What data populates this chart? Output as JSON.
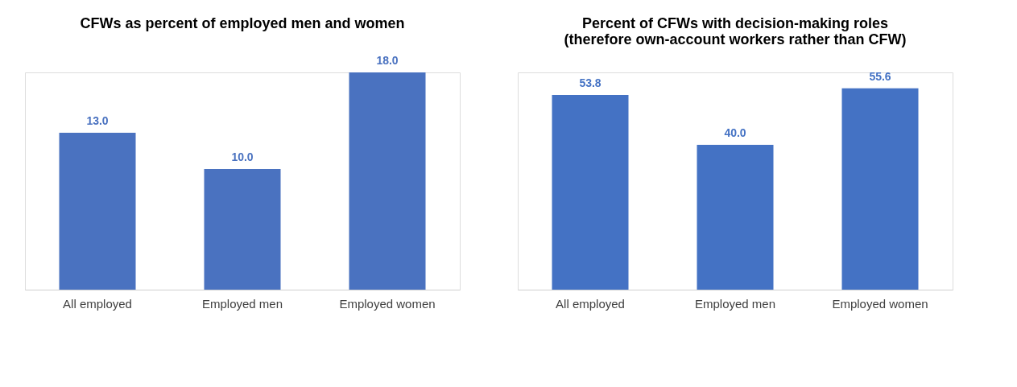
{
  "chart_data": [
    {
      "type": "bar",
      "title": "CFWs as percent of employed men and women",
      "categories": [
        "All employed",
        "Employed men",
        "Employed women"
      ],
      "values": [
        13.0,
        10.0,
        18.0
      ],
      "value_labels": [
        "13.0",
        "10.0",
        "18.0"
      ],
      "color": "#4a72c0"
    },
    {
      "type": "bar",
      "title": "Percent of CFWs with decision-making roles\n(therefore own-account workers rather than CFW)",
      "categories": [
        "All employed",
        "Employed men",
        "Employed women"
      ],
      "values": [
        53.8,
        40.0,
        55.6
      ],
      "value_labels": [
        "53.8",
        "40.0",
        "55.6"
      ],
      "color": "#4472c4"
    }
  ]
}
